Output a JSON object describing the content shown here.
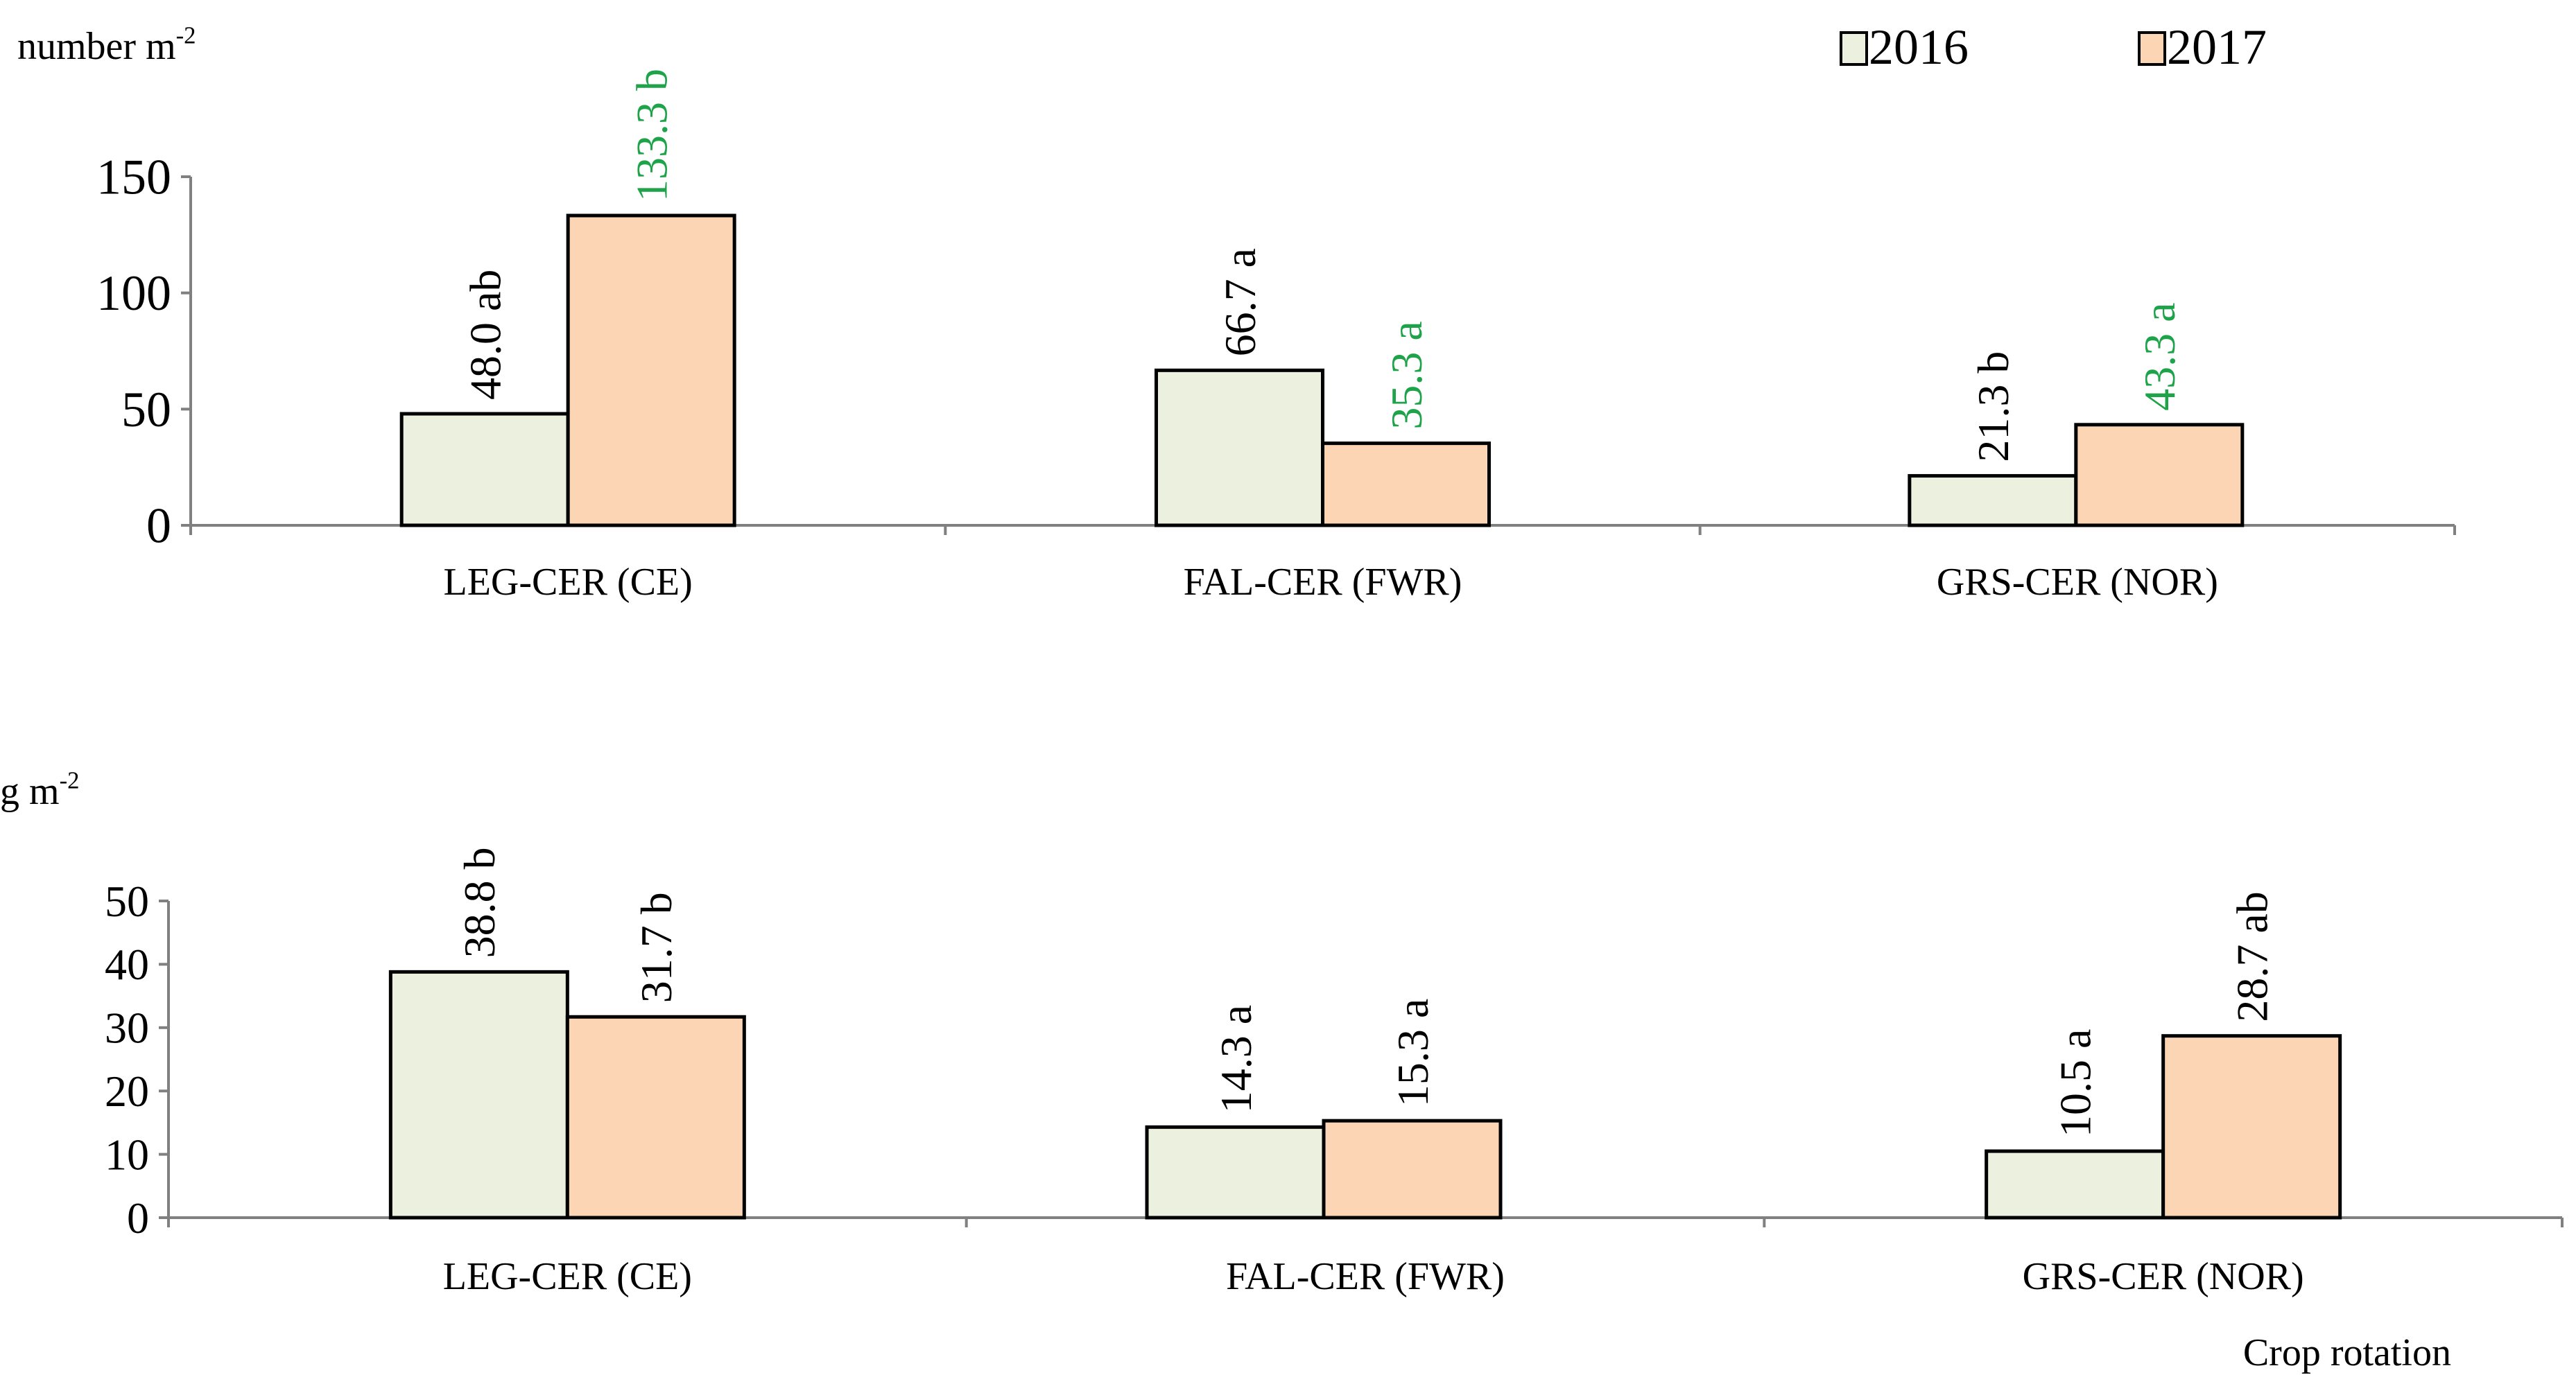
{
  "legend": [
    {
      "label": "2016",
      "color": "#ebf1de"
    },
    {
      "label": "2017",
      "color": "#fcd5b5"
    }
  ],
  "colors": {
    "label_default": "#000000",
    "label_highlight": "#1fa34a",
    "axis": "#808080",
    "bar_stroke": "#000000"
  },
  "xaxis_title": "Crop rotation",
  "chart_data": [
    {
      "type": "bar",
      "ylabel": "number m",
      "ylabel_sup": "-2",
      "ylim": [
        0,
        150
      ],
      "yticks": [
        0,
        50,
        100,
        150
      ],
      "categories": [
        "LEG-CER (CE)",
        "FAL-CER (FWR)",
        "GRS-CER (NOR)"
      ],
      "series": [
        {
          "name": "2016",
          "values": [
            48.0,
            66.7,
            21.3
          ],
          "labels": [
            "48.0 ab",
            "66.7 a",
            "21.3 b"
          ],
          "label_colors": [
            "#000000",
            "#000000",
            "#000000"
          ]
        },
        {
          "name": "2017",
          "values": [
            133.3,
            35.3,
            43.3
          ],
          "labels": [
            "133.3 b",
            "35.3 a",
            "43.3 a"
          ],
          "label_colors": [
            "#1fa34a",
            "#1fa34a",
            "#1fa34a"
          ]
        }
      ]
    },
    {
      "type": "bar",
      "ylabel": "g m",
      "ylabel_sup": "-2",
      "ylim": [
        0,
        50
      ],
      "yticks": [
        0,
        10,
        20,
        30,
        40,
        50
      ],
      "categories": [
        "LEG-CER (CE)",
        "FAL-CER (FWR)",
        "GRS-CER (NOR)"
      ],
      "series": [
        {
          "name": "2016",
          "values": [
            38.8,
            14.3,
            10.5
          ],
          "labels": [
            "38.8 b",
            "14.3 a",
            "10.5 a"
          ],
          "label_colors": [
            "#000000",
            "#000000",
            "#000000"
          ]
        },
        {
          "name": "2017",
          "values": [
            31.7,
            15.3,
            28.7
          ],
          "labels": [
            "31.7 b",
            "15.3 a",
            "28.7 ab"
          ],
          "label_colors": [
            "#000000",
            "#000000",
            "#000000"
          ]
        }
      ]
    }
  ]
}
